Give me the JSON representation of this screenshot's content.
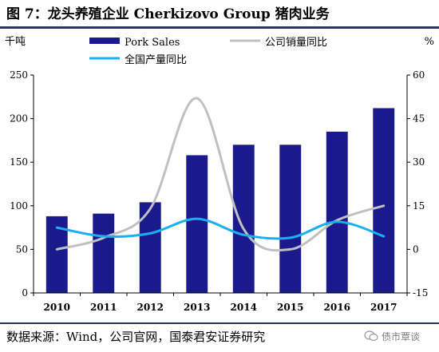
{
  "figure": {
    "title": "图 7：龙头养殖企业 Cherkizovo Group 猪肉业务",
    "source": "数据来源：Wind，公司官网，国泰君安证券研究",
    "watermark": "债市覃谈"
  },
  "chart_data": {
    "type": "bar",
    "categories": [
      "2010",
      "2011",
      "2012",
      "2013",
      "2014",
      "2015",
      "2016",
      "2017"
    ],
    "left_axis": {
      "unit": "千吨",
      "ylim": [
        0,
        250
      ],
      "ticks": [
        0,
        50,
        100,
        150,
        200,
        250
      ]
    },
    "right_axis": {
      "unit": "%",
      "ylim": [
        -15,
        60
      ],
      "ticks": [
        -15,
        0,
        15,
        30,
        45,
        60
      ]
    },
    "series": [
      {
        "name": "Pork Sales",
        "type": "bar",
        "axis": "left",
        "color": "#1a1a8c",
        "values": [
          88,
          91,
          104,
          158,
          170,
          170,
          185,
          212
        ]
      },
      {
        "name": "公司销量同比",
        "type": "line",
        "axis": "right",
        "smooth": true,
        "color": "#c0c0c0",
        "values": [
          0,
          4,
          14,
          52,
          7,
          0,
          10,
          15
        ]
      },
      {
        "name": "全国产量同比",
        "type": "line",
        "axis": "right",
        "smooth": true,
        "color": "#1ab0f0",
        "values": [
          7.5,
          4.5,
          5.5,
          10.5,
          5,
          4,
          9.5,
          4.5
        ]
      }
    ],
    "legend_position": "top",
    "grid": false
  }
}
